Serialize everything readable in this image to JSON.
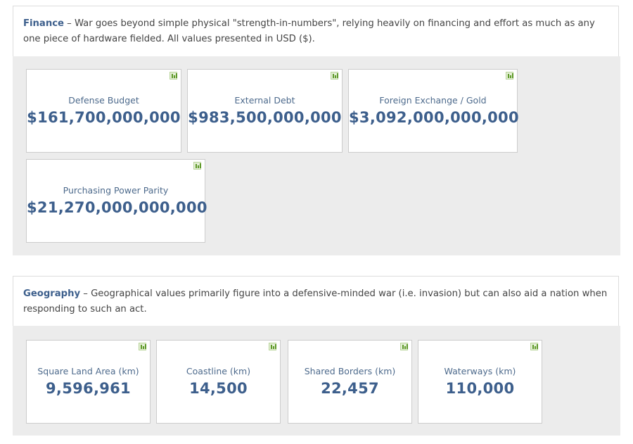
{
  "finance": {
    "title": "Finance",
    "description": " – War goes beyond simple physical \"strength-in-numbers\", relying heavily on financing and effort as much as any one piece of hardware fielded. All values presented in USD ($).",
    "cards": [
      {
        "label": "Defense Budget",
        "value": "$161,700,000,000"
      },
      {
        "label": "External Debt",
        "value": "$983,500,000,000"
      },
      {
        "label": "Foreign Exchange / Gold",
        "value": "$3,092,000,000,000"
      },
      {
        "label": "Purchasing Power Parity",
        "value": "$21,270,000,000,000"
      }
    ]
  },
  "geography": {
    "title": "Geography",
    "description": " – Geographical values primarily figure into a defensive-minded war (i.e. invasion) but can also aid a nation when responding to such an act.",
    "cards": [
      {
        "label": "Square Land Area (km)",
        "value": "9,596,961"
      },
      {
        "label": "Coastline (km)",
        "value": "14,500"
      },
      {
        "label": "Shared Borders (km)",
        "value": "22,457"
      },
      {
        "label": "Waterways (km)",
        "value": "110,000"
      }
    ]
  }
}
